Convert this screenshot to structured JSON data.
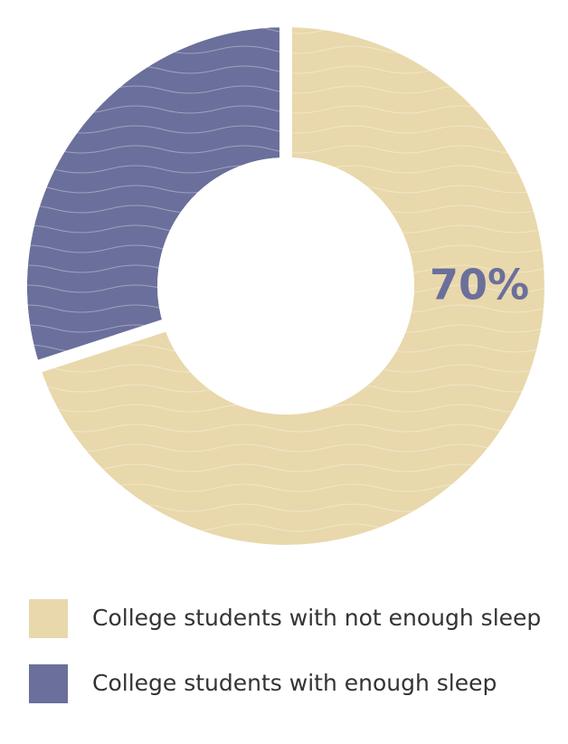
{
  "chart_data": {
    "type": "donut",
    "categories": [
      "College students with not enough sleep",
      "College students with enough sleep"
    ],
    "values": [
      70,
      30
    ],
    "value_labels": [
      "70%",
      null
    ],
    "colors": [
      "#e8d8ab",
      "#6b6f9b"
    ],
    "legend": "bottom"
  }
}
